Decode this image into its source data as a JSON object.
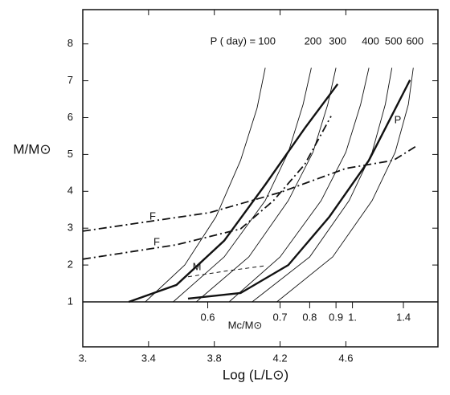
{
  "chart_data": {
    "type": "line",
    "x_label": "Log (L/L⊙)",
    "y_label": "M/M⊙",
    "period_label": "P ( day) =",
    "xlim": [
      3.0,
      5.16
    ],
    "ylim": [
      -0.22,
      8.93
    ],
    "xticks": [
      {
        "value": 3,
        "label": "3."
      },
      3.4,
      3.8,
      4.2,
      4.6
    ],
    "yticks": [
      1,
      2,
      3,
      4,
      5,
      6,
      7,
      8
    ],
    "core_mass_scale": {
      "label": "Mc/M⊙",
      "baseline": 1,
      "ticks": [
        {
          "mass": "0.6",
          "x": 3.76
        },
        {
          "mass": "0.7",
          "x": 4.2
        },
        {
          "mass": "0.8",
          "x": 4.38
        },
        {
          "mass": "0.9",
          "x": 4.54
        },
        {
          "mass": "1.",
          "x": 4.64
        },
        {
          "mass": "1.4",
          "x": 4.95
        }
      ]
    },
    "series": [
      {
        "name": "100",
        "style": "thin",
        "color": "#111",
        "x": [
          3.38,
          3.62,
          3.81,
          3.96,
          4.06,
          4.11
        ],
        "values": [
          1.0,
          2.0,
          3.31,
          4.84,
          6.26,
          7.35
        ]
      },
      {
        "name": "200",
        "style": "thin",
        "color": "#111",
        "x": [
          3.55,
          3.86,
          4.11,
          4.25,
          4.34,
          4.39
        ],
        "values": [
          1.0,
          2.22,
          3.75,
          5.06,
          6.36,
          7.35
        ]
      },
      {
        "name": "300",
        "style": "thin",
        "color": "#111",
        "x": [
          3.69,
          4.01,
          4.25,
          4.4,
          4.49,
          4.54
        ],
        "values": [
          1.0,
          2.22,
          3.75,
          5.06,
          6.36,
          7.35
        ]
      },
      {
        "name": "400",
        "style": "thin",
        "color": "#111",
        "x": [
          3.89,
          4.2,
          4.45,
          4.6,
          4.69,
          4.74
        ],
        "values": [
          1.0,
          2.22,
          3.75,
          5.06,
          6.36,
          7.35
        ]
      },
      {
        "name": "500",
        "style": "thin",
        "color": "#111",
        "x": [
          4.03,
          4.38,
          4.62,
          4.76,
          4.84,
          4.88
        ],
        "values": [
          1.0,
          2.22,
          3.75,
          5.06,
          6.36,
          7.35
        ]
      },
      {
        "name": "600",
        "style": "thin",
        "color": "#111",
        "x": [
          4.18,
          4.52,
          4.76,
          4.9,
          4.98,
          5.01
        ],
        "values": [
          1.0,
          2.22,
          3.75,
          5.06,
          6.36,
          7.35
        ]
      },
      {
        "style": "thick",
        "color": "#111",
        "x": [
          3.28,
          3.57,
          3.86,
          4.11,
          4.35,
          4.55
        ],
        "values": [
          1.0,
          1.46,
          2.66,
          4.18,
          5.71,
          6.91
        ]
      },
      {
        "name": "P",
        "style": "thick",
        "color": "#111",
        "x": [
          3.64,
          3.96,
          4.25,
          4.5,
          4.74,
          4.99
        ],
        "values": [
          1.09,
          1.24,
          2.0,
          3.31,
          4.84,
          7.02
        ]
      },
      {
        "name": "F",
        "style": "dashdot",
        "color": "#111",
        "x": [
          3.0,
          3.77,
          4.2,
          4.6,
          4.89,
          5.03
        ],
        "values": [
          2.92,
          3.42,
          3.97,
          4.62,
          4.84,
          5.23
        ]
      },
      {
        "name": "F",
        "style": "dashdot",
        "color": "#111",
        "x": [
          3.0,
          3.57,
          3.96,
          4.16,
          4.35,
          4.51
        ],
        "values": [
          2.16,
          2.55,
          2.98,
          3.75,
          4.73,
          6.04
        ]
      },
      {
        "name": "M",
        "style": "dashed",
        "color": "#111",
        "x": [
          3.64,
          3.86,
          4.11
        ],
        "values": [
          1.68,
          1.83,
          1.98
        ]
      }
    ]
  }
}
